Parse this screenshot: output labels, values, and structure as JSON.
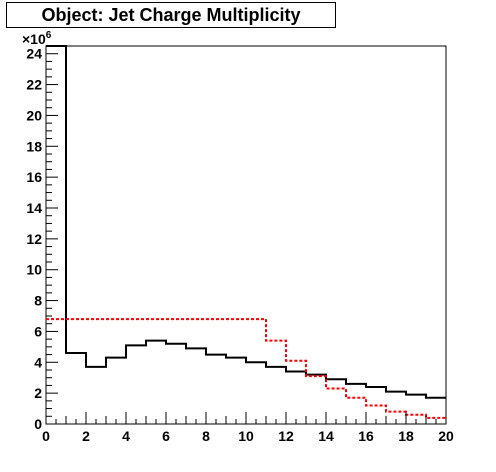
{
  "chart_data": {
    "type": "line",
    "title": "Object: Jet Charge Multiplicity",
    "xlabel": "",
    "ylabel": "",
    "y_multiplier_label": "×10",
    "y_multiplier_exponent": "6",
    "xlim": [
      0,
      20
    ],
    "ylim": [
      0,
      24.5
    ],
    "x_ticks": [
      "0",
      "2",
      "4",
      "6",
      "8",
      "10",
      "12",
      "14",
      "16",
      "18",
      "20"
    ],
    "y_ticks": [
      "0",
      "2",
      "4",
      "6",
      "8",
      "10",
      "12",
      "14",
      "16",
      "18",
      "20",
      "22",
      "24"
    ],
    "grid": false,
    "bin_edges": [
      0,
      1,
      2,
      3,
      4,
      5,
      6,
      7,
      8,
      9,
      10,
      11,
      12,
      13,
      14,
      15,
      16,
      17,
      18,
      19,
      20
    ],
    "series": [
      {
        "style": "solid",
        "color": "#000000",
        "values": [
          24.5,
          4.6,
          3.7,
          4.3,
          5.1,
          5.4,
          5.2,
          4.9,
          4.5,
          4.3,
          4.0,
          3.7,
          3.4,
          3.2,
          2.9,
          2.6,
          2.4,
          2.1,
          1.9,
          1.7
        ]
      },
      {
        "style": "dashed",
        "color": "#ff0000",
        "values": [
          6.8,
          6.8,
          6.8,
          6.8,
          6.8,
          6.8,
          6.8,
          6.8,
          6.8,
          6.8,
          6.8,
          5.4,
          4.1,
          3.1,
          2.3,
          1.7,
          1.2,
          0.8,
          0.6,
          0.4
        ]
      }
    ]
  }
}
